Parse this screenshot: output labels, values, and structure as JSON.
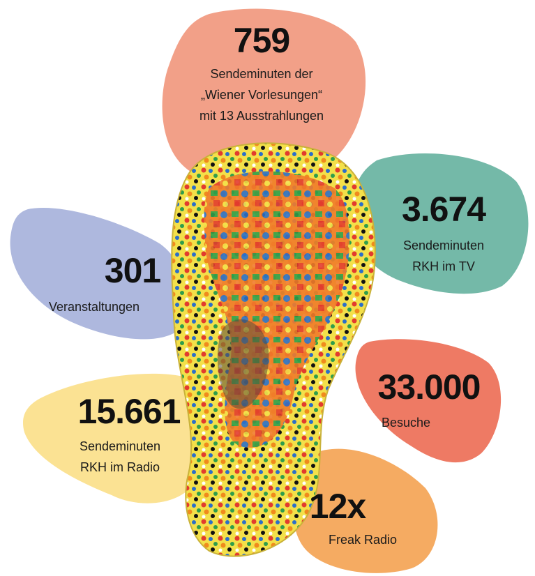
{
  "stats": [
    {
      "number": "759",
      "lines": [
        "Sendeminuten der",
        "„Wiener Vorlesungen“",
        "mit 13 Ausstrahlungen"
      ]
    },
    {
      "number": "3.674",
      "lines": [
        "Sendeminuten",
        "RKH im TV"
      ]
    },
    {
      "number": "301",
      "lines": [
        "Veranstaltungen"
      ]
    },
    {
      "number": "33.000",
      "lines": [
        "Besuche"
      ]
    },
    {
      "number": "15.661",
      "lines": [
        "Sendeminuten",
        "RKH im Radio"
      ]
    },
    {
      "number": "12x",
      "lines": [
        "Freak Radio"
      ]
    }
  ]
}
